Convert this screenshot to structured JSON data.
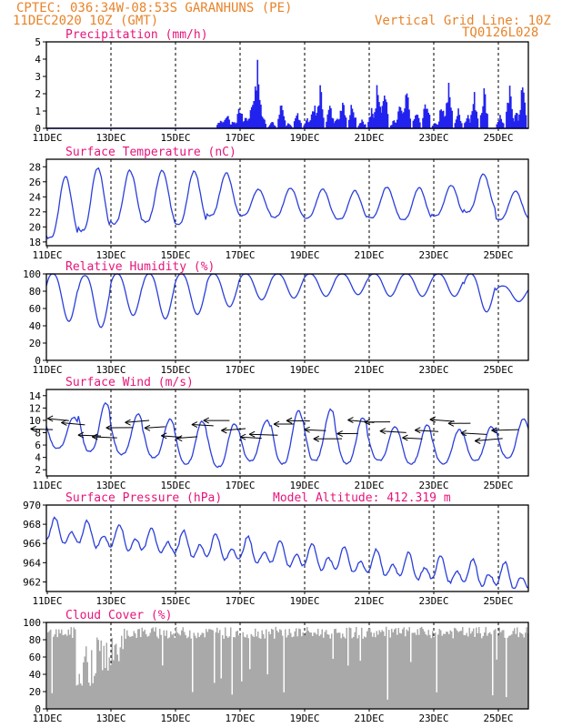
{
  "header": {
    "line1": "CPTEC:   036:34W-08:53S  GARANHUNS (PE)",
    "line2": "11DEC2020 10Z (GMT)",
    "grid_label": "Vertical Grid Line: 10Z",
    "code": "TQ0126L028"
  },
  "colors": {
    "header": "#e8842a",
    "title": "#e6157a",
    "series": "#2b3fd9",
    "bars": "#2222ee",
    "cloud": "#a9a9a9"
  },
  "chart_data": [
    {
      "type": "bar",
      "title": "Precipitation (mm/h)",
      "x_start_day": 11,
      "x_end_day": 26,
      "xtick_labels": [
        "11DEC",
        "13DEC",
        "15DEC",
        "17DEC",
        "19DEC",
        "21DEC",
        "23DEC",
        "25DEC"
      ],
      "ylim": [
        0,
        5
      ],
      "yticks": [
        0,
        1,
        2,
        3,
        4,
        5
      ],
      "series": [
        {
          "day": [
            16.4,
            16.6,
            16.8,
            17.0,
            17.2,
            17.4,
            17.55,
            17.7,
            18.0,
            18.3,
            18.5,
            18.8,
            19.1,
            19.3,
            19.5,
            19.8,
            20.0,
            20.2,
            20.5,
            20.8,
            21.1,
            21.3,
            21.5,
            21.8,
            22.0,
            22.2,
            22.5,
            22.8,
            23.1,
            23.3,
            23.5,
            23.8,
            24.1,
            24.3,
            24.6,
            25.1,
            25.4,
            25.6,
            25.8
          ],
          "values": [
            0.6,
            0.9,
            0.5,
            1.3,
            0.8,
            2.0,
            3.8,
            1.0,
            0.4,
            1.6,
            0.3,
            1.0,
            0.6,
            1.5,
            2.5,
            1.4,
            0.8,
            2.0,
            1.7,
            0.6,
            1.1,
            3.0,
            2.4,
            0.5,
            1.5,
            2.2,
            1.0,
            1.8,
            0.4,
            1.6,
            2.5,
            1.1,
            0.9,
            2.0,
            2.4,
            0.8,
            2.3,
            1.0,
            2.6
          ]
        }
      ]
    },
    {
      "type": "line",
      "title": "Surface Temperature (nC)",
      "ylim": [
        17.5,
        29
      ],
      "yticks": [
        18,
        20,
        22,
        24,
        26,
        28
      ],
      "xtick_labels": [
        "11DEC",
        "13DEC",
        "15DEC",
        "17DEC",
        "19DEC",
        "21DEC",
        "23DEC",
        "25DEC"
      ],
      "series": [
        {
          "day_max": [
            11.6,
            12.6,
            13.6,
            14.6,
            15.6,
            16.6,
            17.6,
            18.6,
            19.6,
            20.6,
            21.6,
            22.6,
            23.6,
            24.6,
            25.6
          ],
          "max": [
            26.7,
            27.9,
            27.5,
            27.6,
            27.4,
            27.2,
            25.0,
            25.2,
            25.0,
            24.8,
            25.3,
            25.2,
            25.5,
            27.0,
            24.8
          ],
          "min": [
            18.5,
            19.5,
            20.5,
            20.7,
            20.4,
            21.5,
            21.5,
            21.3,
            21.2,
            21.0,
            21.2,
            21.0,
            21.5,
            22.0,
            21.0
          ]
        }
      ]
    },
    {
      "type": "line",
      "title": "Relative Humidity (%)",
      "ylim": [
        0,
        100
      ],
      "yticks": [
        0,
        20,
        40,
        60,
        80,
        100
      ],
      "xtick_labels": [
        "11DEC",
        "13DEC",
        "15DEC",
        "17DEC",
        "19DEC",
        "21DEC",
        "23DEC",
        "25DEC"
      ],
      "series": [
        {
          "day_min": [
            11.7,
            12.7,
            13.7,
            14.7,
            15.7,
            16.7,
            17.7,
            18.7,
            19.7,
            20.7,
            21.7,
            22.7,
            23.7,
            24.7,
            25.7
          ],
          "min": [
            45,
            38,
            52,
            48,
            53,
            62,
            70,
            72,
            74,
            76,
            74,
            74,
            74,
            56,
            68
          ],
          "max": [
            100,
            98,
            100,
            100,
            100,
            100,
            100,
            100,
            100,
            100,
            100,
            100,
            100,
            100,
            86
          ]
        }
      ]
    },
    {
      "type": "line",
      "title": "Surface Wind (m/s)",
      "ylim": [
        1,
        15
      ],
      "yticks": [
        2,
        4,
        6,
        8,
        10,
        12,
        14
      ],
      "xtick_labels": [
        "11DEC",
        "13DEC",
        "15DEC",
        "17DEC",
        "19DEC",
        "21DEC",
        "23DEC",
        "25DEC"
      ],
      "series": [
        {
          "speed_peaks": [
            10.5,
            12.8,
            11.0,
            10.2,
            9.8,
            9.5,
            10.0,
            11.5,
            11.8,
            10.5,
            9.0,
            9.2,
            8.5,
            9.0,
            10.2
          ],
          "speed_troughs": [
            5.5,
            5.0,
            4.5,
            4.0,
            3.0,
            2.5,
            3.5,
            3.0,
            3.5,
            3.0,
            3.5,
            3.0,
            3.0,
            3.5,
            4.0
          ]
        }
      ]
    },
    {
      "type": "line",
      "title": "Surface Pressure (hPa)",
      "annotation": "Model Altitude: 412.319  m",
      "ylim": [
        961,
        970
      ],
      "yticks": [
        962,
        964,
        966,
        968,
        970
      ],
      "xtick_labels": [
        "11DEC",
        "13DEC",
        "15DEC",
        "17DEC",
        "19DEC",
        "21DEC",
        "23DEC",
        "25DEC"
      ],
      "series": [
        {
          "trend_start": 967.2,
          "trend_end": 962.2,
          "amplitude": 1.5
        }
      ]
    },
    {
      "type": "bar",
      "title": "Cloud Cover (%)",
      "ylim": [
        0,
        100
      ],
      "yticks": [
        0,
        20,
        40,
        60,
        80,
        100
      ],
      "xtick_labels": [
        "11DEC",
        "13DEC",
        "15DEC",
        "17DEC",
        "19DEC",
        "21DEC",
        "23DEC",
        "25DEC"
      ],
      "series": [
        {
          "typical_value": 88
        }
      ]
    }
  ]
}
